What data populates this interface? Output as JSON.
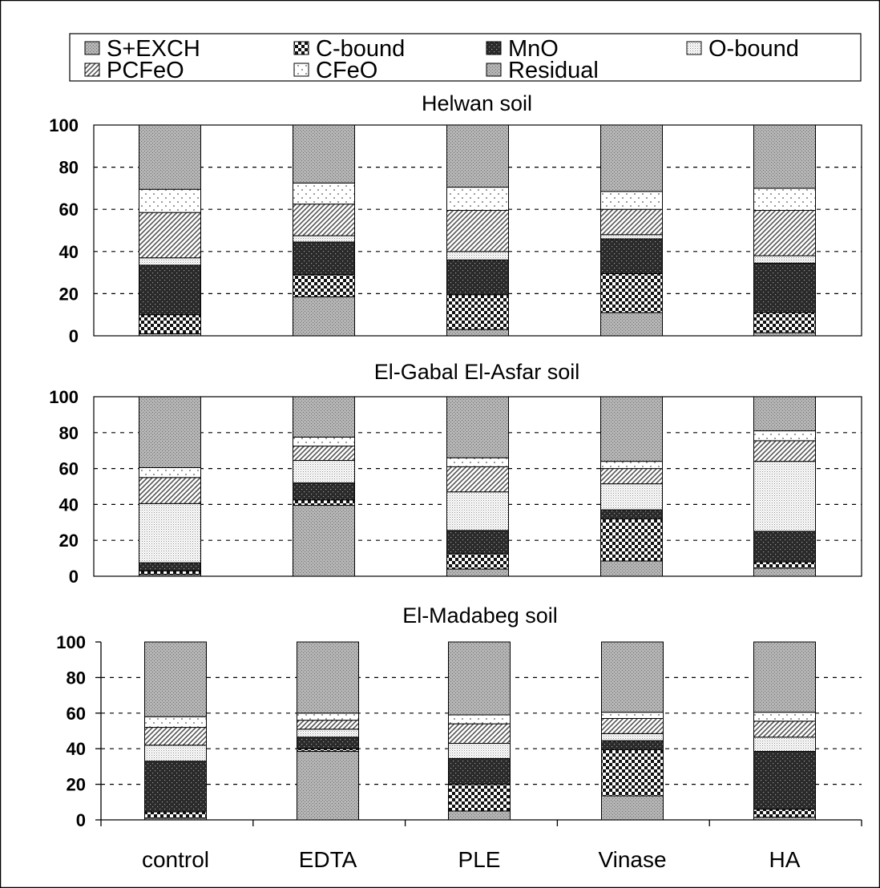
{
  "chart_data": {
    "type": "bar",
    "stacked": true,
    "grid": "dashed horizontal",
    "legend": {
      "placement": "top",
      "entries": [
        {
          "name": "S+EXCH",
          "pattern": "stipple"
        },
        {
          "name": "C-bound",
          "pattern": "checker"
        },
        {
          "name": "MnO",
          "pattern": "dark-dotted"
        },
        {
          "name": "O-bound",
          "pattern": "dense-dots"
        },
        {
          "name": "PCFeO",
          "pattern": "diagonal-hatch"
        },
        {
          "name": "CFeO",
          "pattern": "sparse-dots"
        },
        {
          "name": "Residual",
          "pattern": "stipple"
        }
      ]
    },
    "categories": [
      "control",
      "EDTA",
      "PLE",
      "Vinase",
      "HA"
    ],
    "panels": [
      {
        "title": "Helwan soil",
        "ylim": [
          0,
          100
        ],
        "yticks": [
          "0",
          "20",
          "40",
          "60",
          "80",
          "100"
        ],
        "series": [
          {
            "name": "S+EXCH",
            "values": [
              1,
              18.5,
              3,
              11,
              1.5
            ]
          },
          {
            "name": "C-bound",
            "values": [
              9,
              10.5,
              16.5,
              18.5,
              9.5
            ]
          },
          {
            "name": "MnO",
            "values": [
              23.5,
              15.5,
              16.5,
              16.5,
              23.5
            ]
          },
          {
            "name": "O-bound",
            "values": [
              3.5,
              3,
              4,
              2,
              3.5
            ]
          },
          {
            "name": "PCFeO",
            "values": [
              21.5,
              15,
              19.5,
              12,
              21.5
            ]
          },
          {
            "name": "CFeO",
            "values": [
              11,
              10,
              11,
              8.5,
              10.5
            ]
          },
          {
            "name": "Residual",
            "values": [
              30.5,
              27.5,
              29.5,
              31.5,
              30
            ]
          }
        ]
      },
      {
        "title": "El-Gabal El-Asfar soil",
        "ylim": [
          0,
          100
        ],
        "yticks": [
          "0",
          "20",
          "40",
          "60",
          "80",
          "100"
        ],
        "series": [
          {
            "name": "S+EXCH",
            "values": [
              1,
              39.5,
              4,
              8.5,
              4.5
            ]
          },
          {
            "name": "C-bound",
            "values": [
              2,
              3,
              8.5,
              23.5,
              3.5
            ]
          },
          {
            "name": "MnO",
            "values": [
              4.5,
              9.5,
              13,
              5,
              17
            ]
          },
          {
            "name": "O-bound",
            "values": [
              33,
              12.5,
              21.5,
              14.5,
              39
            ]
          },
          {
            "name": "PCFeO",
            "values": [
              14.5,
              8,
              14,
              8.5,
              11.5
            ]
          },
          {
            "name": "CFeO",
            "values": [
              5.5,
              5,
              5,
              4,
              5.5
            ]
          },
          {
            "name": "Residual",
            "values": [
              39.5,
              22.5,
              34,
              36,
              19
            ]
          }
        ]
      },
      {
        "title": "El-Madabeg soil",
        "ylim": [
          0,
          100
        ],
        "yticks": [
          "0",
          "20",
          "40",
          "60",
          "80",
          "100"
        ],
        "series": [
          {
            "name": "S+EXCH",
            "values": [
              1,
              38.5,
              5,
              13.5,
              1.5
            ]
          },
          {
            "name": "C-bound",
            "values": [
              3.5,
              1.5,
              15,
              26,
              4.5
            ]
          },
          {
            "name": "MnO",
            "values": [
              28.5,
              6.5,
              14.5,
              5,
              32.5
            ]
          },
          {
            "name": "O-bound",
            "values": [
              9,
              4.5,
              8.5,
              4,
              8
            ]
          },
          {
            "name": "PCFeO",
            "values": [
              10,
              5,
              11,
              8.5,
              9
            ]
          },
          {
            "name": "CFeO",
            "values": [
              6,
              4,
              5,
              3.5,
              5
            ]
          },
          {
            "name": "Residual",
            "values": [
              42,
              40,
              41,
              39.5,
              39.5
            ]
          }
        ]
      }
    ]
  }
}
